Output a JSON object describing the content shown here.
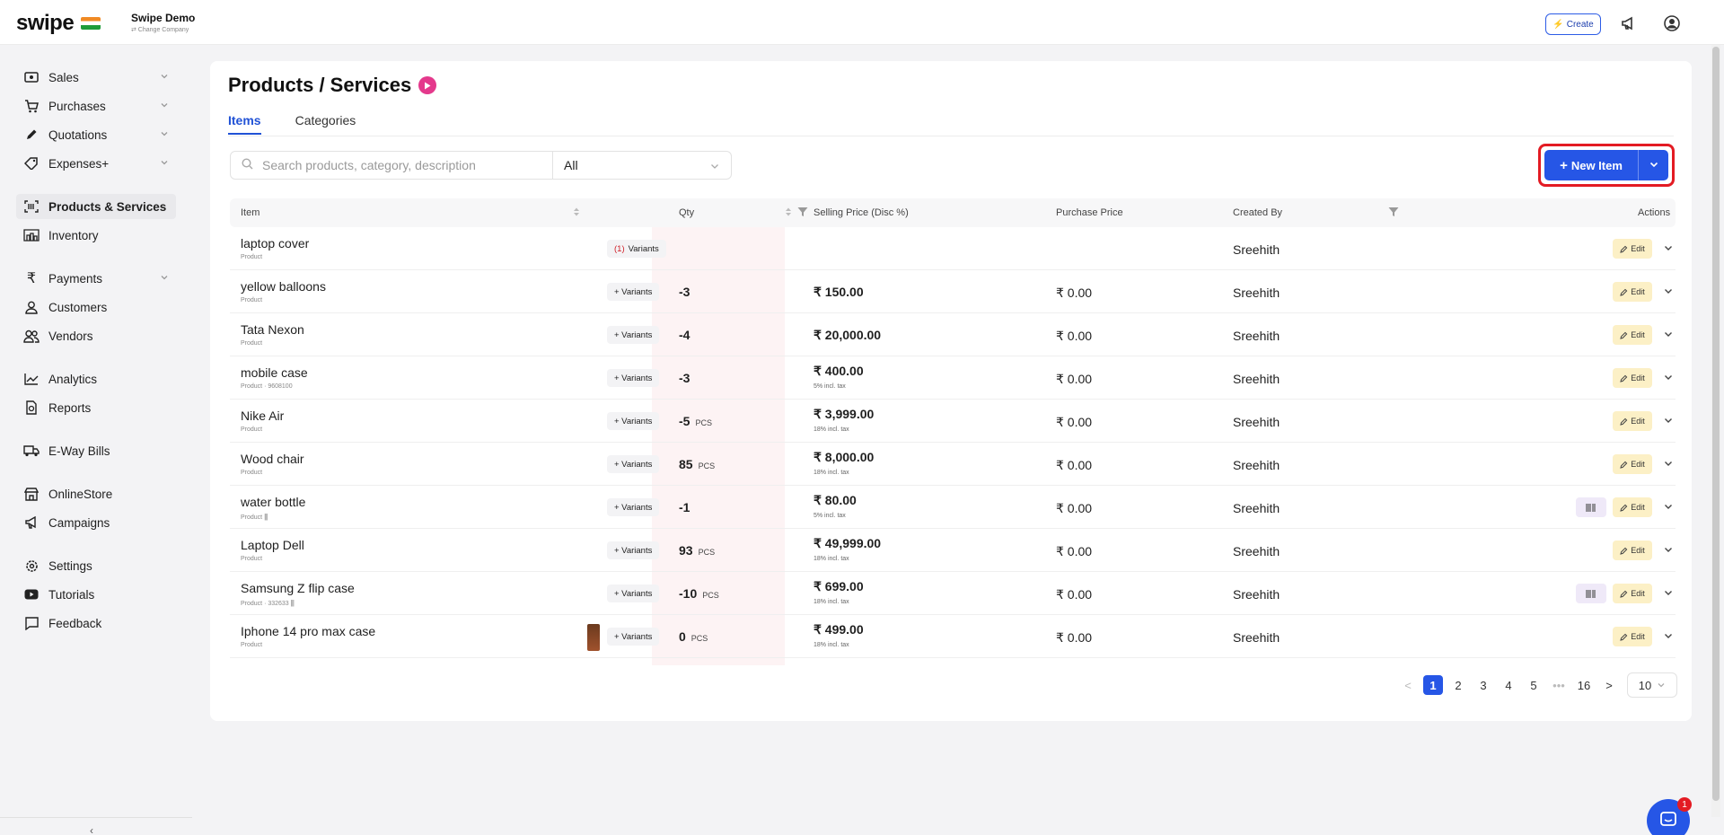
{
  "topbar": {
    "logo": "swipe",
    "company_name": "Swipe Demo",
    "change_company": "⇄ Change Company",
    "create_label": "Create"
  },
  "sidebar": {
    "items": [
      {
        "label": "Sales",
        "icon": "cash-icon",
        "chevron": true
      },
      {
        "label": "Purchases",
        "icon": "cart-icon",
        "chevron": true
      },
      {
        "label": "Quotations",
        "icon": "pencil-icon",
        "chevron": true
      },
      {
        "label": "Expenses+",
        "icon": "tag-icon",
        "chevron": true
      },
      {
        "label": "Products & Services",
        "icon": "barcode-icon",
        "chevron": false,
        "active": true
      },
      {
        "label": "Inventory",
        "icon": "warehouse-icon",
        "chevron": false
      },
      {
        "label": "Payments",
        "icon": "rupee-icon",
        "chevron": true
      },
      {
        "label": "Customers",
        "icon": "user-icon",
        "chevron": false
      },
      {
        "label": "Vendors",
        "icon": "users-icon",
        "chevron": false
      },
      {
        "label": "Analytics",
        "icon": "chart-icon",
        "chevron": false
      },
      {
        "label": "Reports",
        "icon": "report-icon",
        "chevron": false
      },
      {
        "label": "E-Way Bills",
        "icon": "truck-icon",
        "chevron": false
      },
      {
        "label": "OnlineStore",
        "icon": "store-icon",
        "chevron": false
      },
      {
        "label": "Campaigns",
        "icon": "megaphone-icon",
        "chevron": false
      },
      {
        "label": "Settings",
        "icon": "gear-icon",
        "chevron": false
      },
      {
        "label": "Tutorials",
        "icon": "youtube-icon",
        "chevron": false
      },
      {
        "label": "Feedback",
        "icon": "message-icon",
        "chevron": false
      }
    ],
    "collapse_glyph": "‹"
  },
  "page": {
    "title": "Products / Services",
    "tabs": [
      {
        "label": "Items",
        "active": true
      },
      {
        "label": "Categories",
        "active": false
      }
    ],
    "search_placeholder": "Search products, category, description",
    "filter_value": "All",
    "new_item_label": "New Item"
  },
  "table": {
    "headers": {
      "item": "Item",
      "qty": "Qty",
      "selling_price": "Selling Price (Disc %)",
      "purchase_price": "Purchase Price",
      "created_by": "Created By",
      "actions": "Actions"
    },
    "rows": [
      {
        "name": "laptop cover",
        "sub": "Product",
        "variants": "Variants",
        "variant_count": "(1)",
        "qty": "",
        "unit": "",
        "sp": "",
        "sp_tax": "",
        "pp": "",
        "created_by": "Sreehith",
        "barcode": false,
        "thumb": false
      },
      {
        "name": "yellow balloons",
        "sub": "Product",
        "variants": "+ Variants",
        "variant_count": "",
        "qty": "-3",
        "unit": "",
        "sp": "₹ 150.00",
        "sp_tax": "",
        "pp": "₹ 0.00",
        "created_by": "Sreehith",
        "barcode": false,
        "thumb": false
      },
      {
        "name": "Tata Nexon",
        "sub": "Product",
        "variants": "+ Variants",
        "variant_count": "",
        "qty": "-4",
        "unit": "",
        "sp": "₹ 20,000.00",
        "sp_tax": "",
        "pp": "₹ 0.00",
        "created_by": "Sreehith",
        "barcode": false,
        "thumb": false
      },
      {
        "name": "mobile case",
        "sub": "Product · 9608100",
        "variants": "+ Variants",
        "variant_count": "",
        "qty": "-3",
        "unit": "",
        "sp": "₹ 400.00",
        "sp_tax": "5% incl. tax",
        "pp": "₹ 0.00",
        "created_by": "Sreehith",
        "barcode": false,
        "thumb": false
      },
      {
        "name": "Nike Air",
        "sub": "Product",
        "variants": "+ Variants",
        "variant_count": "",
        "qty": "-5",
        "unit": "PCS",
        "sp": "₹ 3,999.00",
        "sp_tax": "18% incl. tax",
        "pp": "₹ 0.00",
        "created_by": "Sreehith",
        "barcode": false,
        "thumb": false
      },
      {
        "name": "Wood chair",
        "sub": "Product",
        "variants": "+ Variants",
        "variant_count": "",
        "qty": "85",
        "unit": "PCS",
        "sp": "₹ 8,000.00",
        "sp_tax": "18% incl. tax",
        "pp": "₹ 0.00",
        "created_by": "Sreehith",
        "barcode": false,
        "thumb": false
      },
      {
        "name": "water bottle",
        "sub": "Product",
        "variants": "+ Variants",
        "variant_count": "",
        "qty": "-1",
        "unit": "",
        "sp": "₹ 80.00",
        "sp_tax": "5% incl. tax",
        "pp": "₹ 0.00",
        "created_by": "Sreehith",
        "barcode": true,
        "thumb": false
      },
      {
        "name": "Laptop Dell",
        "sub": "Product",
        "variants": "+ Variants",
        "variant_count": "",
        "qty": "93",
        "unit": "PCS",
        "sp": "₹ 49,999.00",
        "sp_tax": "18% incl. tax",
        "pp": "₹ 0.00",
        "created_by": "Sreehith",
        "barcode": false,
        "thumb": false
      },
      {
        "name": "Samsung Z flip case",
        "sub": "Product · 332633",
        "variants": "+ Variants",
        "variant_count": "",
        "qty": "-10",
        "unit": "PCS",
        "sp": "₹ 699.00",
        "sp_tax": "18% incl. tax",
        "pp": "₹ 0.00",
        "created_by": "Sreehith",
        "barcode": true,
        "thumb": false
      },
      {
        "name": "Iphone 14 pro max case",
        "sub": "Product",
        "variants": "+ Variants",
        "variant_count": "",
        "qty": "0",
        "unit": "PCS",
        "sp": "₹ 499.00",
        "sp_tax": "18% incl. tax",
        "pp": "₹ 0.00",
        "created_by": "Sreehith",
        "barcode": false,
        "thumb": true
      }
    ],
    "edit_label": "Edit"
  },
  "pagination": {
    "prev": "<",
    "pages": [
      "1",
      "2",
      "3",
      "4",
      "5",
      "•••",
      "16"
    ],
    "active": "1",
    "next": ">",
    "per_page": "10"
  },
  "chat_badge": "1",
  "colors": {
    "accent": "#2656e6",
    "highlight_border": "#e31b23",
    "edit_bg": "#fcf0c6",
    "qty_bg": "#fdf3f4"
  }
}
